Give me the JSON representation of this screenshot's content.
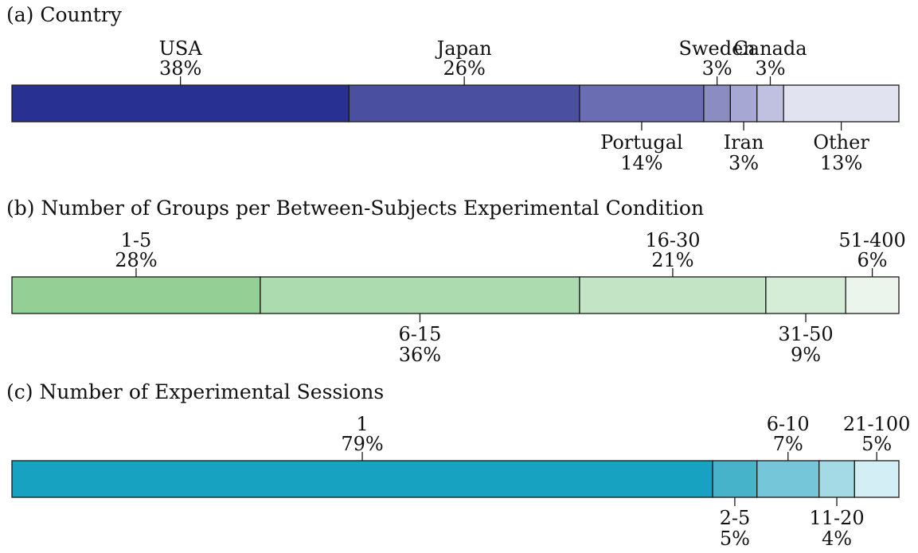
{
  "chart_data": [
    {
      "type": "bar",
      "orientation": "horizontal-stacked",
      "title": "(a) Country",
      "categories": [
        "USA",
        "Japan",
        "Portugal",
        "Sweden",
        "Iran",
        "Canada",
        "Other"
      ],
      "values": [
        38,
        26,
        14,
        3,
        3,
        3,
        13
      ],
      "value_labels": [
        "38%",
        "26%",
        "14%",
        "3%",
        "3%",
        "3%",
        "13%"
      ],
      "label_positions": [
        "above",
        "above",
        "below",
        "above",
        "below",
        "above",
        "below"
      ],
      "colors": [
        "#283192",
        "#4a4fa0",
        "#6a6db2",
        "#8b8dc2",
        "#a6a7d2",
        "#c0c1e1",
        "#e2e3f1"
      ],
      "unit": "%"
    },
    {
      "type": "bar",
      "orientation": "horizontal-stacked",
      "title": "(b) Number of Groups per Between-Subjects Experimental Condition",
      "categories": [
        "1-5",
        "6-15",
        "16-30",
        "31-50",
        "51-400"
      ],
      "values": [
        28,
        36,
        21,
        9,
        6
      ],
      "value_labels": [
        "28%",
        "36%",
        "21%",
        "9%",
        "6%"
      ],
      "label_positions": [
        "above",
        "below",
        "above",
        "below",
        "above"
      ],
      "colors": [
        "#94cf95",
        "#acdbb0",
        "#c3e5c5",
        "#d5ecd7",
        "#ebf5ec"
      ],
      "unit": "%"
    },
    {
      "type": "bar",
      "orientation": "horizontal-stacked",
      "title": "(c) Number of Experimental Sessions",
      "categories": [
        "1",
        "2-5",
        "6-10",
        "11-20",
        "21-100"
      ],
      "values": [
        79,
        5,
        7,
        4,
        5
      ],
      "value_labels": [
        "79%",
        "5%",
        "7%",
        "4%",
        "5%"
      ],
      "label_positions": [
        "above",
        "below",
        "above",
        "below",
        "above"
      ],
      "colors": [
        "#17a2c1",
        "#46b3ca",
        "#75c6d9",
        "#a4dae6",
        "#d4eef5"
      ],
      "unit": "%"
    }
  ]
}
